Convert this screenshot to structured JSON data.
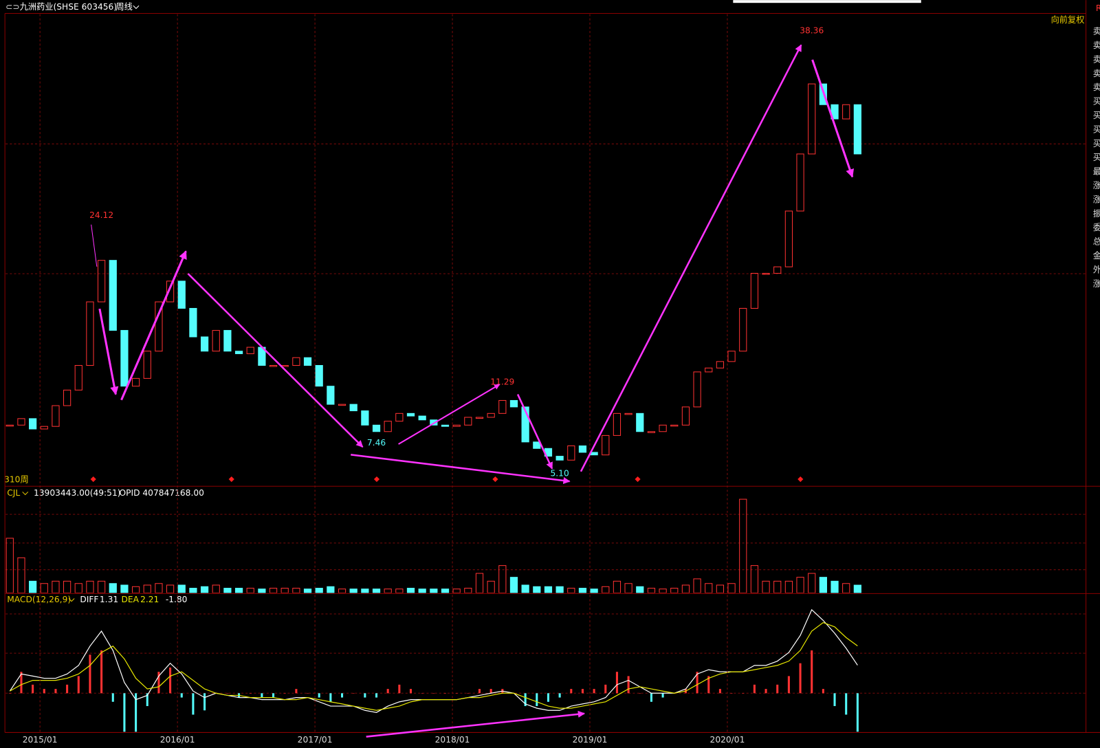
{
  "header": {
    "stock": "九洲药业(SHSE 603456)",
    "period": "周线",
    "adjust": "向前复权",
    "bar_count": "310周",
    "corner": "R",
    "side_labels": [
      "卖",
      "卖",
      "卖",
      "卖",
      "卖",
      "买",
      "买",
      "买",
      "买",
      "买",
      "最",
      "涨",
      "涨",
      "振",
      "委",
      "总",
      "金",
      "外",
      "涨"
    ]
  },
  "chart_data": [
    {
      "type": "candlestick",
      "up_color": "#ff3232",
      "down_color": "#54fcfc",
      "ylim": [
        3.64,
        39.98
      ],
      "x": [
        "2014/10",
        "2014/11",
        "2014/12",
        "2015/01",
        "2015/02",
        "2015/03",
        "2015/04",
        "2015/05",
        "2015/06",
        "2015/07",
        "2015/08",
        "2015/09",
        "2015/10",
        "2015/11",
        "2015/12",
        "2016/01",
        "2016/02",
        "2016/03",
        "2016/04",
        "2016/05",
        "2016/06",
        "2016/07",
        "2016/08",
        "2016/09",
        "2016/10",
        "2016/11",
        "2016/12",
        "2017/01",
        "2017/02",
        "2017/03",
        "2017/04",
        "2017/05",
        "2017/06",
        "2017/07",
        "2017/08",
        "2017/09",
        "2017/10",
        "2017/11",
        "2017/12",
        "2018/01",
        "2018/02",
        "2018/03",
        "2018/04",
        "2018/05",
        "2018/06",
        "2018/07",
        "2018/08",
        "2018/09",
        "2018/10",
        "2018/11",
        "2018/12",
        "2019/01",
        "2019/02",
        "2019/03",
        "2019/04",
        "2019/05",
        "2019/06",
        "2019/07",
        "2019/08",
        "2019/09",
        "2019/10",
        "2019/11",
        "2019/12",
        "2020/01",
        "2020/02",
        "2020/03",
        "2020/04",
        "2020/05",
        "2020/06",
        "2020/07",
        "2020/08",
        "2020/09",
        "2020/10",
        "2020/11",
        "2020/12"
      ],
      "values": [
        8.3,
        8.8,
        8.0,
        8.2,
        9.8,
        11.0,
        12.9,
        17.8,
        21.0,
        15.6,
        11.3,
        11.9,
        14.0,
        17.8,
        19.4,
        17.3,
        15.1,
        14.0,
        15.6,
        14.0,
        13.8,
        14.3,
        12.9,
        12.9,
        12.9,
        13.5,
        12.9,
        11.3,
        9.9,
        9.9,
        9.4,
        8.3,
        7.8,
        8.6,
        9.2,
        9.0,
        8.7,
        8.3,
        8.2,
        8.3,
        8.9,
        8.9,
        9.2,
        10.2,
        9.7,
        7.0,
        6.5,
        5.9,
        5.6,
        6.7,
        6.2,
        6.0,
        7.5,
        9.2,
        9.2,
        7.8,
        7.8,
        8.3,
        8.3,
        9.7,
        12.4,
        12.7,
        13.2,
        14.0,
        17.3,
        20.0,
        20.0,
        20.5,
        24.8,
        29.2,
        34.6,
        33.0,
        31.9,
        33.0,
        29.2
      ],
      "xticks": [
        "2015/01",
        "2016/01",
        "2017/01",
        "2018/01",
        "2019/01",
        "2020/01"
      ],
      "annotations": [
        {
          "x": "2015/06",
          "value": 24.12,
          "color": "#ff3232"
        },
        {
          "x": "2017/06",
          "value": 7.46,
          "color": "#54fcfc"
        },
        {
          "x": "2018/05",
          "value": 11.29,
          "color": "#ff3232"
        },
        {
          "x": "2018/10",
          "value": 5.1,
          "label": "5.10",
          "color": "#54fcfc"
        },
        {
          "x": "2020/08",
          "value": 38.36,
          "color": "#ff3232"
        }
      ]
    },
    {
      "type": "bar",
      "title": "CJL",
      "subtitle": "13903443.00(49:51)",
      "note": "OPID 407847168.00",
      "ylim": [
        0,
        190000000
      ],
      "values": [
        98000000,
        63000000,
        21000000,
        16800000,
        21000000,
        21000000,
        16800000,
        21000000,
        21000000,
        16800000,
        14000000,
        11200000,
        14000000,
        16800000,
        14000000,
        14000000,
        8400000,
        11200000,
        14000000,
        8400000,
        8400000,
        8400000,
        7000000,
        8400000,
        8400000,
        8400000,
        7000000,
        8400000,
        11200000,
        7000000,
        7000000,
        7000000,
        7000000,
        7000000,
        7000000,
        8400000,
        7000000,
        7000000,
        7000000,
        7000000,
        8400000,
        35000000,
        21000000,
        49000000,
        28000000,
        14000000,
        11200000,
        11200000,
        11200000,
        8400000,
        8400000,
        7000000,
        11200000,
        21000000,
        16800000,
        11200000,
        8400000,
        7000000,
        8400000,
        14000000,
        25200000,
        16800000,
        14000000,
        16800000,
        168000000,
        49000000,
        21000000,
        21000000,
        21000000,
        28000000,
        35000000,
        28000000,
        21000000,
        16800000,
        13903443
      ]
    },
    {
      "type": "macd",
      "title": "MACD(12,26,9)",
      "ylim": [
        -1.8,
        4.62
      ],
      "series": [
        {
          "name": "DIFF",
          "color": "#ffffff",
          "values": [
            0.1,
            0.9,
            0.8,
            0.7,
            0.7,
            0.9,
            1.3,
            2.2,
            2.9,
            2.0,
            0.5,
            -0.3,
            -0.1,
            0.8,
            1.4,
            0.9,
            0.1,
            -0.2,
            0.0,
            -0.1,
            -0.2,
            -0.2,
            -0.3,
            -0.3,
            -0.3,
            -0.2,
            -0.2,
            -0.4,
            -0.6,
            -0.6,
            -0.6,
            -0.8,
            -0.9,
            -0.6,
            -0.4,
            -0.3,
            -0.3,
            -0.3,
            -0.3,
            -0.3,
            -0.2,
            -0.1,
            0.0,
            0.1,
            0.0,
            -0.5,
            -0.7,
            -0.8,
            -0.8,
            -0.6,
            -0.5,
            -0.4,
            -0.2,
            0.4,
            0.6,
            0.3,
            0.0,
            0.0,
            0.0,
            0.2,
            0.9,
            1.1,
            1.0,
            1.0,
            1.0,
            1.3,
            1.3,
            1.5,
            1.9,
            2.7,
            3.9,
            3.4,
            2.8,
            2.1,
            1.31
          ]
        },
        {
          "name": "DEA",
          "color": "#e6e600",
          "values": [
            0.1,
            0.4,
            0.6,
            0.6,
            0.6,
            0.7,
            0.9,
            1.3,
            1.9,
            2.2,
            1.6,
            0.7,
            0.2,
            0.3,
            0.8,
            1.0,
            0.6,
            0.2,
            0.0,
            -0.1,
            -0.1,
            -0.2,
            -0.2,
            -0.2,
            -0.3,
            -0.3,
            -0.2,
            -0.3,
            -0.4,
            -0.5,
            -0.6,
            -0.7,
            -0.8,
            -0.7,
            -0.6,
            -0.4,
            -0.3,
            -0.3,
            -0.3,
            -0.3,
            -0.2,
            -0.2,
            -0.1,
            0.0,
            0.0,
            -0.2,
            -0.4,
            -0.6,
            -0.7,
            -0.7,
            -0.6,
            -0.5,
            -0.4,
            -0.1,
            0.2,
            0.3,
            0.2,
            0.1,
            0.0,
            0.1,
            0.4,
            0.7,
            0.9,
            1.0,
            1.0,
            1.1,
            1.2,
            1.3,
            1.5,
            2.0,
            2.9,
            3.3,
            3.1,
            2.6,
            2.21
          ]
        }
      ],
      "bars": {
        "value_labels": [
          "-1.80"
        ],
        "values": [
          0,
          1.0,
          0.4,
          0.2,
          0.2,
          0.4,
          0.8,
          1.8,
          2.0,
          -0.4,
          -2.2,
          -2.0,
          -0.6,
          1.0,
          1.2,
          -0.2,
          -1.0,
          -0.8,
          0,
          0,
          -0.2,
          0,
          -0.2,
          -0.2,
          0,
          0.2,
          0,
          -0.2,
          -0.4,
          -0.2,
          0,
          -0.2,
          -0.2,
          0.2,
          0.4,
          0.2,
          0,
          0,
          0,
          0,
          0,
          0.2,
          0.2,
          0.2,
          0,
          -0.6,
          -0.6,
          -0.4,
          -0.2,
          0.2,
          0.2,
          0.2,
          0.4,
          1.0,
          0.8,
          0,
          -0.4,
          -0.2,
          0,
          0.2,
          1.0,
          0.8,
          0.2,
          0,
          0,
          0.4,
          0.2,
          0.4,
          0.8,
          1.4,
          2.0,
          0.2,
          -0.6,
          -1.0,
          -1.8
        ]
      }
    }
  ]
}
